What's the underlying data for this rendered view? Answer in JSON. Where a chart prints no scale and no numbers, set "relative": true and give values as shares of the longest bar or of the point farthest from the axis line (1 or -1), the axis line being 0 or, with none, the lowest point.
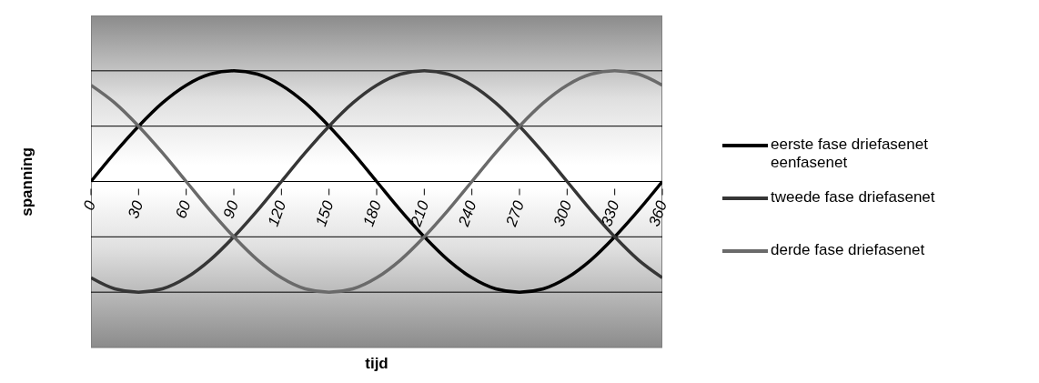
{
  "chart_data": {
    "type": "line",
    "relative": true,
    "xlabel": "tijd",
    "ylabel": "spanning",
    "x": [
      0,
      15,
      30,
      45,
      60,
      75,
      90,
      105,
      120,
      135,
      150,
      165,
      180,
      195,
      210,
      225,
      240,
      255,
      270,
      285,
      300,
      315,
      330,
      345,
      360
    ],
    "xlim": [
      0,
      360
    ],
    "xticks": [
      0,
      30,
      60,
      90,
      120,
      150,
      180,
      210,
      240,
      270,
      300,
      330,
      360
    ],
    "series": [
      {
        "name": "eerste fase driefasenet eenfasenet",
        "color": "#000000",
        "values": [
          0,
          0.26,
          0.5,
          0.71,
          0.87,
          0.97,
          1,
          0.97,
          0.87,
          0.71,
          0.5,
          0.26,
          0,
          -0.26,
          -0.5,
          -0.71,
          -0.87,
          -0.97,
          -1,
          -0.97,
          -0.87,
          -0.71,
          -0.5,
          -0.26,
          0
        ]
      },
      {
        "name": "tweede fase driefasenet",
        "color": "#363636",
        "values": [
          -0.87,
          -0.97,
          -1,
          -0.97,
          -0.87,
          -0.71,
          -0.5,
          -0.26,
          0,
          0.26,
          0.5,
          0.71,
          0.87,
          0.97,
          1,
          0.97,
          0.87,
          0.71,
          0.5,
          0.26,
          0,
          -0.26,
          -0.5,
          -0.71,
          -0.87
        ]
      },
      {
        "name": "derde fase driefasenet",
        "color": "#6a6a6a",
        "values": [
          0.87,
          0.71,
          0.5,
          0.26,
          0,
          -0.26,
          -0.5,
          -0.71,
          -0.87,
          -0.97,
          -1,
          -0.97,
          -0.87,
          -0.71,
          -0.5,
          -0.26,
          0,
          0.26,
          0.5,
          0.71,
          0.87,
          0.97,
          1,
          0.97,
          0.87
        ]
      }
    ],
    "grid": "y",
    "legend": "right",
    "marker": "none",
    "line_style": "solid"
  }
}
